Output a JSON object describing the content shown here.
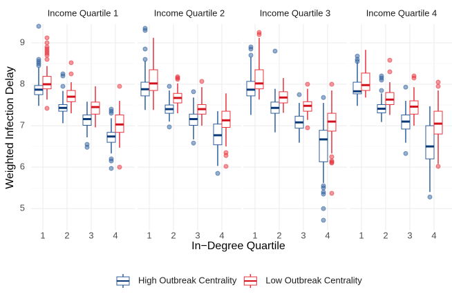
{
  "chart_data": {
    "type": "box",
    "xlabel": "In−Degree Quartile",
    "ylabel": "Weighted Infection Delay",
    "categories": [
      "1",
      "2",
      "3",
      "4"
    ],
    "ylim": [
      4.47,
      9.45
    ],
    "yticks": [
      5,
      6,
      7,
      8,
      9
    ],
    "grid": true,
    "legend": "bottom",
    "series": [
      {
        "name": "High Outbreak Centrality",
        "color": "#2b5d9b",
        "median_color": "#0b3a78"
      },
      {
        "name": "Low Outbreak Centrality",
        "color": "#e8303a",
        "median_color": "#d4101c"
      }
    ],
    "facets": [
      {
        "title": "Income Quartile 1",
        "values": [
          [
            {
              "low": 7.48,
              "q1": 7.75,
              "median": 7.87,
              "q3": 7.97,
              "high": 8.4,
              "outliers": [
                8.45,
                8.5,
                8.55,
                8.6,
                9.4
              ]
            },
            {
              "low": 7.06,
              "q1": 7.35,
              "median": 7.43,
              "q3": 7.51,
              "high": 7.84,
              "outliers": [
                7.95,
                8.2,
                8.25
              ]
            },
            {
              "low": 6.72,
              "q1": 7.01,
              "median": 7.16,
              "q3": 7.26,
              "high": 7.58,
              "outliers": [
                6.55,
                6.48
              ]
            },
            {
              "low": 6.33,
              "q1": 6.6,
              "median": 6.74,
              "q3": 6.84,
              "high": 7.18,
              "outliers": [
                7.3,
                7.35,
                7.4,
                6.2,
                6.15,
                5.97
              ]
            }
          ],
          [
            {
              "low": 7.63,
              "q1": 7.89,
              "median": 8.0,
              "q3": 8.19,
              "high": 8.44,
              "outliers": [
                7.42,
                8.6,
                8.7,
                8.75,
                8.8,
                8.85,
                8.9,
                9.0,
                9.12
              ]
            },
            {
              "low": 7.3,
              "q1": 7.58,
              "median": 7.7,
              "q3": 7.85,
              "high": 8.05,
              "outliers": [
                8.25,
                8.52
              ]
            },
            {
              "low": 6.96,
              "q1": 7.28,
              "median": 7.45,
              "q3": 7.57,
              "high": 7.95,
              "outliers": []
            },
            {
              "low": 6.47,
              "q1": 6.84,
              "median": 7.03,
              "q3": 7.26,
              "high": 7.6,
              "outliers": [
                7.95,
                6.0
              ]
            }
          ]
        ]
      },
      {
        "title": "Income Quartile 2",
        "values": [
          [
            {
              "low": 7.38,
              "q1": 7.72,
              "median": 7.88,
              "q3": 8.05,
              "high": 8.56,
              "outliers": [
                8.6,
                8.85,
                9.3,
                9.35
              ]
            },
            {
              "low": 7.1,
              "q1": 7.3,
              "median": 7.4,
              "q3": 7.5,
              "high": 7.85,
              "outliers": [
                6.97,
                7.95
              ]
            },
            {
              "low": 6.67,
              "q1": 7.01,
              "median": 7.16,
              "q3": 7.28,
              "high": 7.68,
              "outliers": [
                6.58,
                7.82
              ]
            },
            {
              "low": 6.03,
              "q1": 6.54,
              "median": 6.77,
              "q3": 7.04,
              "high": 7.35,
              "outliers": [
                5.85
              ]
            }
          ],
          [
            {
              "low": 7.38,
              "q1": 7.85,
              "median": 8.02,
              "q3": 8.35,
              "high": 9.12,
              "outliers": []
            },
            {
              "low": 7.3,
              "q1": 7.55,
              "median": 7.67,
              "q3": 7.78,
              "high": 8.02,
              "outliers": [
                8.12,
                8.15,
                8.18
              ]
            },
            {
              "low": 7.0,
              "q1": 7.28,
              "median": 7.4,
              "q3": 7.51,
              "high": 7.93,
              "outliers": [
                8.07
              ]
            },
            {
              "low": 6.5,
              "q1": 6.96,
              "median": 7.13,
              "q3": 7.35,
              "high": 7.78,
              "outliers": [
                6.35,
                6.28,
                6.02
              ]
            }
          ]
        ]
      },
      {
        "title": "Income Quartile 3",
        "values": [
          [
            {
              "low": 7.26,
              "q1": 7.72,
              "median": 7.87,
              "q3": 8.07,
              "high": 8.65,
              "outliers": [
                8.7,
                8.85,
                8.9
              ]
            },
            {
              "low": 6.84,
              "q1": 7.3,
              "median": 7.43,
              "q3": 7.57,
              "high": 7.89,
              "outliers": [
                8.8
              ]
            },
            {
              "low": 6.59,
              "q1": 6.94,
              "median": 7.08,
              "q3": 7.23,
              "high": 7.55,
              "outliers": [
                7.75
              ]
            },
            {
              "low": 5.62,
              "q1": 6.13,
              "median": 6.67,
              "q3": 6.89,
              "high": 7.55,
              "outliers": [
                7.68,
                5.55,
                5.5,
                5.4,
                5.35,
                5.0,
                4.72
              ]
            }
          ],
          [
            {
              "low": 7.63,
              "q1": 7.89,
              "median": 8.02,
              "q3": 8.35,
              "high": 9.12,
              "outliers": [
                9.2,
                9.25
              ]
            },
            {
              "low": 7.31,
              "q1": 7.55,
              "median": 7.68,
              "q3": 7.82,
              "high": 8.15,
              "outliers": []
            },
            {
              "low": 7.14,
              "q1": 7.35,
              "median": 7.48,
              "q3": 7.58,
              "high": 7.89,
              "outliers": [
                8.0,
                6.95
              ]
            },
            {
              "low": 6.33,
              "q1": 6.87,
              "median": 7.1,
              "q3": 7.3,
              "high": 7.85,
              "outliers": [
                8.0,
                6.25,
                6.15,
                6.12,
                6.1,
                5.37
              ]
            }
          ]
        ]
      },
      {
        "title": "Income Quartile 4",
        "values": [
          [
            {
              "low": 7.48,
              "q1": 7.77,
              "median": 7.83,
              "q3": 8.05,
              "high": 8.53,
              "outliers": [
                8.55,
                8.6,
                8.68
              ]
            },
            {
              "low": 7.09,
              "q1": 7.31,
              "median": 7.41,
              "q3": 7.51,
              "high": 7.78,
              "outliers": [
                7.85,
                8.1,
                8.15,
                8.2
              ]
            },
            {
              "low": 6.59,
              "q1": 6.92,
              "median": 7.1,
              "q3": 7.26,
              "high": 7.6,
              "outliers": [
                6.33,
                7.93
              ]
            },
            {
              "low": 5.4,
              "q1": 6.2,
              "median": 6.5,
              "q3": 7.0,
              "high": 7.47,
              "outliers": [
                5.28
              ]
            }
          ],
          [
            {
              "low": 7.68,
              "q1": 7.85,
              "median": 7.98,
              "q3": 8.27,
              "high": 8.83,
              "outliers": []
            },
            {
              "low": 7.26,
              "q1": 7.51,
              "median": 7.63,
              "q3": 7.8,
              "high": 8.05,
              "outliers": [
                8.3,
                8.58
              ]
            },
            {
              "low": 7.0,
              "q1": 7.28,
              "median": 7.46,
              "q3": 7.6,
              "high": 7.93,
              "outliers": [
                8.15,
                8.2
              ]
            },
            {
              "low": 6.08,
              "q1": 6.8,
              "median": 7.05,
              "q3": 7.35,
              "high": 7.85,
              "outliers": [
                7.95,
                8.05,
                6.02
              ]
            }
          ]
        ]
      }
    ]
  }
}
